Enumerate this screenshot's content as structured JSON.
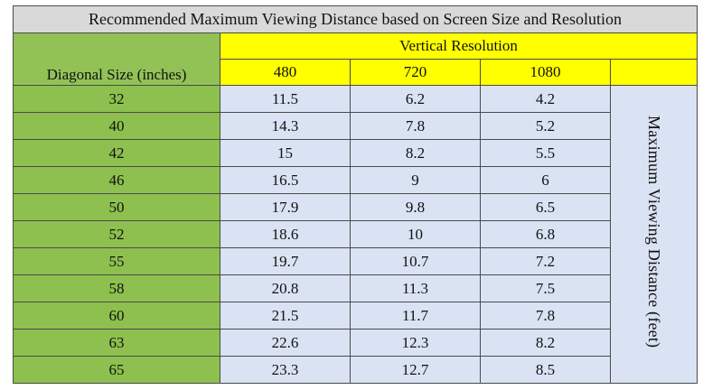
{
  "title": "Recommended Maximum Viewing Distance based on Screen Size and Resolution",
  "table": {
    "row_header": "Diagonal Size (inches)",
    "column_group_header": "Vertical Resolution",
    "columns": [
      "480",
      "720",
      "1080"
    ],
    "side_label": "Maximum Viewing Distance (feet)",
    "rows": [
      {
        "size": "32",
        "values": [
          "11.5",
          "6.2",
          "4.2"
        ]
      },
      {
        "size": "40",
        "values": [
          "14.3",
          "7.8",
          "5.2"
        ]
      },
      {
        "size": "42",
        "values": [
          "15",
          "8.2",
          "5.5"
        ]
      },
      {
        "size": "46",
        "values": [
          "16.5",
          "9",
          "6"
        ]
      },
      {
        "size": "50",
        "values": [
          "17.9",
          "9.8",
          "6.5"
        ]
      },
      {
        "size": "52",
        "values": [
          "18.6",
          "10",
          "6.8"
        ]
      },
      {
        "size": "55",
        "values": [
          "19.7",
          "10.7",
          "7.2"
        ]
      },
      {
        "size": "58",
        "values": [
          "20.8",
          "11.3",
          "7.5"
        ]
      },
      {
        "size": "60",
        "values": [
          "21.5",
          "11.7",
          "7.8"
        ]
      },
      {
        "size": "63",
        "values": [
          "22.6",
          "12.3",
          "8.2"
        ]
      },
      {
        "size": "65",
        "values": [
          "23.3",
          "12.7",
          "8.5"
        ]
      }
    ]
  },
  "colors": {
    "title_bg": "#d9d9d9",
    "size_column_bg": "#8dc04f",
    "header_bg": "#ffff00",
    "value_bg": "#dae3f3",
    "border": "#4a4a4a"
  }
}
